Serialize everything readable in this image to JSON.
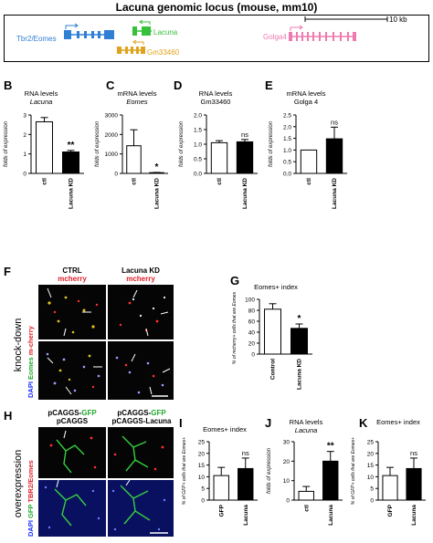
{
  "figure_title": "Lacuna genomic locus (mouse, mm10)",
  "locus": {
    "scale_bar": "10 kb",
    "genes": [
      {
        "name": "Tbr2/Eomes",
        "color": "#2f7fd4"
      },
      {
        "name": "Lacuna",
        "color": "#35c23a"
      },
      {
        "name": "Gm33460",
        "color": "#e0a21c"
      },
      {
        "name": "Golga4",
        "color": "#ee7ab0"
      }
    ]
  },
  "panels": {
    "B": {
      "letter": "B",
      "title": "RNA levels",
      "subtitle": "Lacuna"
    },
    "C": {
      "letter": "C",
      "title": "mRNA levels",
      "subtitle": "Eomes"
    },
    "D": {
      "letter": "D",
      "title": "RNA levels",
      "subtitle": "Gm33460"
    },
    "E": {
      "letter": "E",
      "title": "mRNA levels",
      "subtitle": "Golga 4"
    },
    "F": {
      "letter": "F",
      "side_label": "knock-down",
      "col1_title": "CTRL",
      "col1_sub": "mcherry",
      "col2_title": "Lacuna KD",
      "col2_sub": "mcherry",
      "ylab_dapi": "DAPI",
      "ylab_eomes": "Eomes",
      "ylab_mcherry": "m-cherry"
    },
    "G": {
      "letter": "G",
      "title": "Eomes+ index"
    },
    "H": {
      "letter": "H",
      "side_label": "overexpression",
      "col1_line1": "pCAGGS-",
      "col1_line1_green": "GFP",
      "col1_line2": "pCAGGS",
      "col2_line1": "pCAGGS-",
      "col2_line1_green": "GFP",
      "col2_line2": "pCAGGS-Lacuna",
      "ylab_dapi": "DAPI",
      "ylab_gfp": "GFP",
      "ylab_tbr2": "TBR2/Eomes"
    },
    "I": {
      "letter": "I",
      "title": "Eomes+ index"
    },
    "J": {
      "letter": "J",
      "title": "RNA levels",
      "subtitle": "Lacuna"
    },
    "K": {
      "letter": "K",
      "title": "Eomes+ index"
    }
  },
  "chart_data": [
    {
      "panel": "B",
      "type": "bar",
      "categories": [
        "ctl",
        "Lacuna KD"
      ],
      "values": [
        2.65,
        1.1
      ],
      "errors": [
        0.22,
        0.08
      ],
      "ylabel": "folds of expression",
      "ylim": [
        0,
        3
      ],
      "yticks": [
        0,
        1,
        2,
        3
      ],
      "tick_labels": [
        "0",
        "1",
        "2",
        "3"
      ],
      "significance": [
        "",
        "**"
      ],
      "fills": [
        "#ffffff",
        "#000000"
      ]
    },
    {
      "panel": "C",
      "type": "bar",
      "categories": [
        "ctl",
        "Lacuna KD"
      ],
      "values": [
        1420,
        38
      ],
      "errors": [
        820,
        12
      ],
      "ylabel": "folds of expression",
      "ylim": [
        0,
        3000
      ],
      "yticks": [
        0,
        1000,
        2000,
        3000
      ],
      "tick_labels": [
        "0",
        "1000",
        "2000",
        "3000"
      ],
      "significance": [
        "",
        "*"
      ],
      "fills": [
        "#ffffff",
        "#000000"
      ]
    },
    {
      "panel": "D",
      "type": "bar",
      "categories": [
        "ctl",
        "Lacuna KD"
      ],
      "values": [
        1.05,
        1.08
      ],
      "errors": [
        0.07,
        0.08
      ],
      "ylabel": "folds of expression",
      "ylim": [
        0,
        2
      ],
      "yticks": [
        0,
        0.5,
        1,
        1.5,
        2
      ],
      "tick_labels": [
        "0.0",
        "0.5",
        "1.0",
        "1.5",
        "2.0"
      ],
      "significance": [
        "",
        "ns"
      ],
      "fills": [
        "#ffffff",
        "#000000"
      ]
    },
    {
      "panel": "E",
      "type": "bar",
      "categories": [
        "ctl",
        "Lacuna KD"
      ],
      "values": [
        1.0,
        1.48
      ],
      "errors": [
        0,
        0.5
      ],
      "ylabel": "folds of expression",
      "ylim": [
        0,
        2.5
      ],
      "yticks": [
        0,
        0.5,
        1,
        1.5,
        2,
        2.5
      ],
      "tick_labels": [
        "0.0",
        "0.5",
        "1.0",
        "1.5",
        "2.0",
        "2.5"
      ],
      "significance": [
        "",
        "ns"
      ],
      "fills": [
        "#ffffff",
        "#000000"
      ]
    },
    {
      "panel": "G",
      "type": "bar",
      "categories": [
        "Control",
        "Lacuna KD"
      ],
      "values": [
        82,
        47
      ],
      "errors": [
        10,
        8
      ],
      "ylabel": "% of mcherry+ cells that are Eomes+",
      "ylim": [
        0,
        100
      ],
      "yticks": [
        0,
        20,
        40,
        60,
        80,
        100
      ],
      "tick_labels": [
        "0",
        "20",
        "40",
        "60",
        "80",
        "100"
      ],
      "significance": [
        "",
        "*"
      ],
      "fills": [
        "#ffffff",
        "#000000"
      ]
    },
    {
      "panel": "I",
      "type": "bar",
      "categories": [
        "GFP",
        "Lacuna"
      ],
      "values": [
        10.5,
        13.5
      ],
      "errors": [
        3.5,
        4.5
      ],
      "ylabel": "% of GFP+ cells that are Eomes+",
      "ylim": [
        0,
        25
      ],
      "yticks": [
        0,
        5,
        10,
        15,
        20,
        25
      ],
      "tick_labels": [
        "0",
        "5",
        "10",
        "15",
        "20",
        "25"
      ],
      "significance": [
        "",
        "ns"
      ],
      "fills": [
        "#ffffff",
        "#000000"
      ]
    },
    {
      "panel": "J",
      "type": "bar",
      "categories": [
        "ctl",
        "Lacuna"
      ],
      "values": [
        4.5,
        20
      ],
      "errors": [
        2.5,
        5
      ],
      "ylabel": "folds of expression",
      "ylim": [
        0,
        30
      ],
      "yticks": [
        0,
        10,
        20,
        30
      ],
      "tick_labels": [
        "0",
        "10",
        "20",
        "30"
      ],
      "significance": [
        "",
        "**"
      ],
      "fills": [
        "#ffffff",
        "#000000"
      ]
    },
    {
      "panel": "K",
      "type": "bar",
      "categories": [
        "GFP",
        "Lacuna"
      ],
      "values": [
        10.5,
        13.5
      ],
      "errors": [
        3.5,
        4.5
      ],
      "ylabel": "% of GFP+ cells that are Eomes+",
      "ylim": [
        0,
        25
      ],
      "yticks": [
        0,
        5,
        10,
        15,
        20,
        25
      ],
      "tick_labels": [
        "0",
        "5",
        "10",
        "15",
        "20",
        "25"
      ],
      "significance": [
        "",
        "ns"
      ],
      "fills": [
        "#ffffff",
        "#000000"
      ]
    }
  ]
}
